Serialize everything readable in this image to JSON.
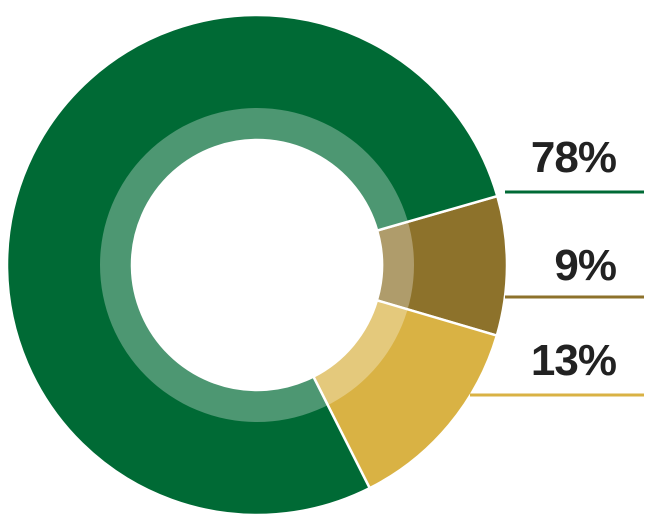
{
  "chart_data": {
    "type": "pie",
    "style": "donut",
    "categories": [
      "",
      "",
      ""
    ],
    "values": [
      78,
      9,
      13
    ],
    "labels": [
      "78%",
      "9%",
      "13%"
    ],
    "colors": [
      "#006a35",
      "#8d722b",
      "#d9b244"
    ],
    "inner_ring_highlight": "#ffffff",
    "legend": "right",
    "title": "",
    "xlabel": "",
    "ylabel": ""
  }
}
